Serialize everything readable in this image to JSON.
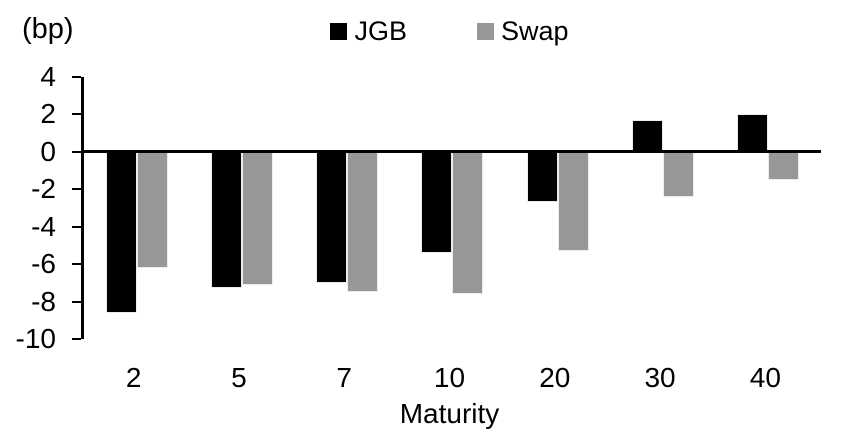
{
  "chart_data": {
    "type": "bar",
    "title": "",
    "unit_label": "(bp)",
    "xlabel": "Maturity",
    "ylabel": "",
    "categories": [
      "2",
      "5",
      "7",
      "10",
      "20",
      "30",
      "40"
    ],
    "series": [
      {
        "name": "JGB",
        "color": "#000000",
        "values": [
          -8.6,
          -7.3,
          -7.0,
          -5.4,
          -2.7,
          1.7,
          2.0
        ]
      },
      {
        "name": "Swap",
        "color": "#979797",
        "values": [
          -6.2,
          -7.1,
          -7.5,
          -7.6,
          -5.3,
          -2.4,
          -1.5
        ]
      }
    ],
    "ylim": [
      -10,
      4
    ],
    "yticks": [
      4,
      2,
      0,
      -2,
      -4,
      -6,
      -8,
      -10
    ],
    "ytick_step": 2,
    "legend_position": "top-center",
    "grid": false,
    "axis_color": "#000000",
    "background_color": "#ffffff"
  }
}
